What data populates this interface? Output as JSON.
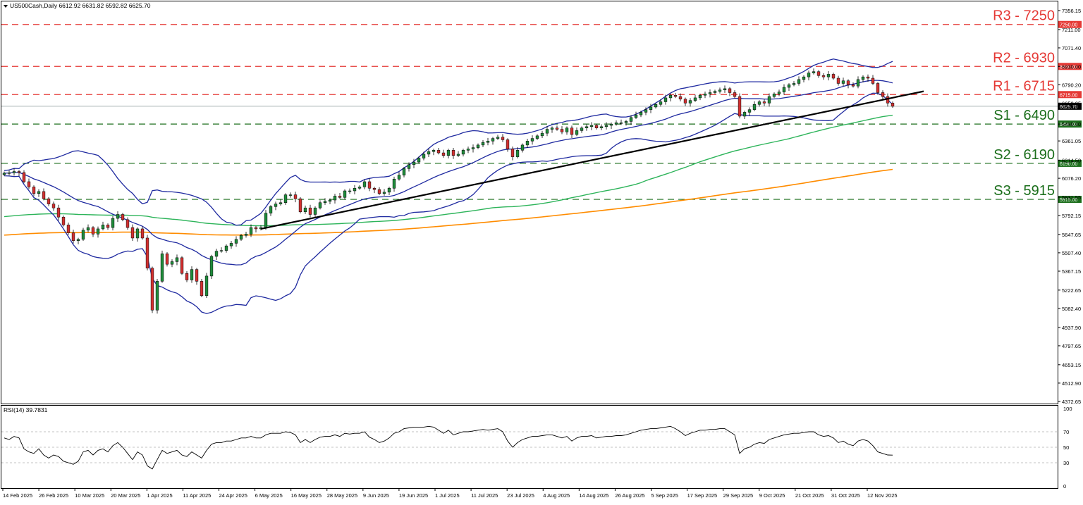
{
  "header": {
    "title": "US500Cash,Daily  6612.92 6631.82 6592.82 6625.70"
  },
  "rsi_header": {
    "title": "RSI(14) 39.7831"
  },
  "price_levels": [
    {
      "label": "R3 - 7250",
      "value": 7250,
      "color": "#e53935",
      "tag": "7250.00"
    },
    {
      "label": "R2 - 6930",
      "value": 6930,
      "color": "#e53935",
      "tag": "6930.00"
    },
    {
      "label": "R1 - 6715",
      "value": 6715,
      "color": "#e53935",
      "tag": "6715.00"
    },
    {
      "label": "S1 - 6490",
      "value": 6490,
      "color": "#1b6e1b",
      "tag": "6490.00"
    },
    {
      "label": "S2 - 6190",
      "value": 6190,
      "color": "#1b6e1b",
      "tag": "6190.00"
    },
    {
      "label": "S3 - 5915",
      "value": 5915,
      "color": "#1b6e1b",
      "tag": "5915.00"
    }
  ],
  "current_price": {
    "value": 6625.7,
    "tag": "6625.70"
  },
  "chart_data": {
    "type": "candlestick",
    "symbol": "US500Cash,Daily",
    "ohlc_header": {
      "open": 6612.92,
      "high": 6631.82,
      "low": 6592.82,
      "close": 6625.7
    },
    "price_axis": {
      "ylim": [
        4372.65,
        7356.15
      ],
      "ticks": [
        "7356.15",
        "7211.00",
        "7071.40",
        "6930.00",
        "6790.20",
        "6650.05",
        "6490.00",
        "6361.05",
        "6214.50",
        "6076.20",
        "5931.55",
        "5792.15",
        "5647.65",
        "5507.40",
        "5367.15",
        "5222.65",
        "5082.40",
        "4937.90",
        "4797.65",
        "4653.15",
        "4512.90",
        "4372.65"
      ]
    },
    "x_axis": {
      "dates": [
        "14 Feb 2025",
        "26 Feb 2025",
        "10 Mar 2025",
        "20 Mar 2025",
        "1 Apr 2025",
        "11 Apr 2025",
        "24 Apr 2025",
        "6 May 2025",
        "16 May 2025",
        "28 May 2025",
        "9 Jun 2025",
        "19 Jun 2025",
        "1 Jul 2025",
        "11 Jul 2025",
        "23 Jul 2025",
        "4 Aug 2025",
        "14 Aug 2025",
        "26 Aug 2025",
        "5 Sep 2025",
        "17 Sep 2025",
        "29 Sep 2025",
        "9 Oct 2025",
        "21 Oct 2025",
        "31 Oct 2025",
        "12 Nov 2025"
      ]
    },
    "close_series": [
      6115,
      6118,
      6128,
      6120,
      6050,
      6010,
      5960,
      5975,
      5920,
      5880,
      5850,
      5780,
      5720,
      5660,
      5600,
      5610,
      5680,
      5700,
      5650,
      5690,
      5720,
      5700,
      5770,
      5800,
      5760,
      5700,
      5620,
      5690,
      5620,
      5390,
      5070,
      5290,
      5500,
      5420,
      5440,
      5470,
      5350,
      5300,
      5380,
      5290,
      5180,
      5330,
      5480,
      5520,
      5525,
      5560,
      5580,
      5610,
      5640,
      5650,
      5700,
      5690,
      5700,
      5810,
      5860,
      5880,
      5890,
      5950,
      5950,
      5920,
      5820,
      5850,
      5800,
      5850,
      5890,
      5900,
      5910,
      5940,
      5930,
      5980,
      5980,
      6000,
      6010,
      6050,
      6000,
      5990,
      5960,
      5970,
      6000,
      6070,
      6100,
      6150,
      6180,
      6200,
      6230,
      6260,
      6280,
      6290,
      6270,
      6250,
      6290,
      6250,
      6260,
      6290,
      6300,
      6310,
      6330,
      6350,
      6360,
      6380,
      6390,
      6370,
      6300,
      6240,
      6290,
      6330,
      6360,
      6380,
      6400,
      6420,
      6450,
      6460,
      6450,
      6430,
      6460,
      6410,
      6440,
      6460,
      6470,
      6480,
      6460,
      6470,
      6480,
      6490,
      6500,
      6500,
      6510,
      6540,
      6560,
      6580,
      6600,
      6620,
      6640,
      6660,
      6690,
      6710,
      6700,
      6680,
      6650,
      6670,
      6690,
      6710,
      6720,
      6730,
      6740,
      6750,
      6760,
      6730,
      6700,
      6550,
      6580,
      6600,
      6640,
      6660,
      6650,
      6700,
      6720,
      6735,
      6770,
      6790,
      6800,
      6830,
      6850,
      6880,
      6890,
      6860,
      6850,
      6870,
      6840,
      6800,
      6820,
      6790,
      6780,
      6830,
      6850,
      6840,
      6800,
      6730,
      6700,
      6650,
      6625.7
    ],
    "indicators": [
      {
        "name": "trendline",
        "color": "#000000"
      },
      {
        "name": "bollinger",
        "color": "#1f2aa0"
      },
      {
        "name": "ma_green",
        "color": "#2db45a"
      },
      {
        "name": "ma_orange",
        "color": "#ff8c00"
      }
    ],
    "rsi": {
      "period": 14,
      "last": 39.7831,
      "ylim": [
        0,
        100
      ],
      "levels": [
        70,
        50,
        30
      ],
      "ticks": [
        "100",
        "70",
        "50",
        "30",
        "0"
      ],
      "values": [
        62,
        60,
        64,
        62,
        48,
        44,
        42,
        48,
        40,
        36,
        40,
        38,
        32,
        30,
        28,
        32,
        44,
        46,
        40,
        46,
        48,
        44,
        52,
        56,
        50,
        42,
        34,
        44,
        40,
        26,
        22,
        34,
        46,
        42,
        44,
        46,
        40,
        38,
        44,
        40,
        36,
        46,
        54,
        56,
        56,
        58,
        58,
        60,
        62,
        62,
        64,
        62,
        62,
        66,
        68,
        68,
        68,
        70,
        69,
        66,
        56,
        60,
        56,
        60,
        63,
        64,
        64,
        66,
        64,
        68,
        67,
        68,
        68,
        70,
        63,
        60,
        56,
        58,
        62,
        68,
        70,
        74,
        75,
        76,
        76,
        76,
        77,
        76,
        72,
        68,
        72,
        66,
        68,
        70,
        70,
        71,
        72,
        73,
        72,
        73,
        74,
        70,
        58,
        50,
        56,
        60,
        62,
        64,
        64,
        65,
        66,
        66,
        64,
        62,
        64,
        58,
        62,
        64,
        64,
        65,
        62,
        63,
        64,
        64,
        65,
        65,
        66,
        68,
        70,
        72,
        73,
        74,
        74,
        75,
        76,
        77,
        74,
        70,
        65,
        68,
        70,
        72,
        72,
        73,
        73,
        74,
        74,
        70,
        66,
        42,
        48,
        50,
        54,
        56,
        55,
        60,
        62,
        64,
        66,
        67,
        68,
        68,
        69,
        70,
        70,
        66,
        64,
        65,
        62,
        56,
        58,
        54,
        52,
        58,
        60,
        58,
        52,
        44,
        42,
        40,
        39.78
      ]
    }
  }
}
